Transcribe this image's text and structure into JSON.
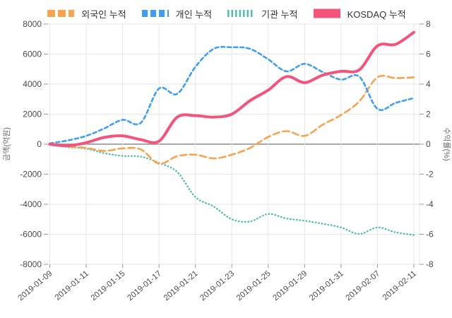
{
  "legend": [
    {
      "id": "foreign",
      "label": "외국인 누적",
      "color": "#F9A34F",
      "dash": "longdash",
      "width": 2.6
    },
    {
      "id": "individual",
      "label": "개인 누적",
      "color": "#3E9EF5",
      "dash": "dash",
      "width": 2.6
    },
    {
      "id": "institution",
      "label": "기관 누적",
      "color": "#4FBDB2",
      "dash": "dot",
      "width": 2.4
    },
    {
      "id": "kosdaq",
      "label": "KOSDAQ 누적",
      "color": "#F4547C",
      "dash": "solid",
      "width": 4
    }
  ],
  "chart_data": {
    "type": "line",
    "x": [
      "2019-01-09",
      "2019-01-10",
      "2019-01-11",
      "2019-01-14",
      "2019-01-15",
      "2019-01-16",
      "2019-01-17",
      "2019-01-18",
      "2019-01-21",
      "2019-01-22",
      "2019-01-23",
      "2019-01-24",
      "2019-01-25",
      "2019-01-28",
      "2019-01-29",
      "2019-01-30",
      "2019-01-31",
      "2019-02-01",
      "2019-02-07",
      "2019-02-08",
      "2019-02-11"
    ],
    "x_ticks": [
      {
        "index": 0,
        "label": "2019-01-09"
      },
      {
        "index": 2,
        "label": "2019-01-11"
      },
      {
        "index": 4,
        "label": "2019-01-15"
      },
      {
        "index": 6,
        "label": "2019-01-17"
      },
      {
        "index": 8,
        "label": "2019-01-21"
      },
      {
        "index": 10,
        "label": "2019-01-23"
      },
      {
        "index": 12,
        "label": "2019-01-25"
      },
      {
        "index": 14,
        "label": "2019-01-29"
      },
      {
        "index": 16,
        "label": "2019-01-31"
      },
      {
        "index": 18,
        "label": "2019-02-07"
      },
      {
        "index": 20,
        "label": "2019-02-11"
      }
    ],
    "series": [
      {
        "id": "institution",
        "name": "기관 누적",
        "axis": "left",
        "unit": "억원",
        "values": [
          -50,
          -200,
          -300,
          -600,
          -780,
          -830,
          -1250,
          -1850,
          -3520,
          -4150,
          -5000,
          -5150,
          -4650,
          -4950,
          -5100,
          -5300,
          -5550,
          -5980,
          -5550,
          -5870,
          -6050
        ]
      },
      {
        "id": "foreign",
        "name": "외국인 누적",
        "axis": "left",
        "unit": "억원",
        "values": [
          0,
          -150,
          -250,
          -450,
          -280,
          -350,
          -1300,
          -800,
          -700,
          -950,
          -700,
          -250,
          480,
          870,
          550,
          1300,
          1950,
          2850,
          4450,
          4400,
          4450
        ]
      },
      {
        "id": "individual",
        "name": "개인 누적",
        "axis": "left",
        "unit": "억원",
        "values": [
          50,
          250,
          550,
          1050,
          1620,
          1420,
          3700,
          3350,
          5150,
          6350,
          6450,
          6350,
          5650,
          4850,
          5350,
          4800,
          4300,
          4500,
          2350,
          2750,
          3070
        ]
      },
      {
        "id": "kosdaq",
        "name": "KOSDAQ 누적",
        "axis": "right",
        "unit": "%",
        "values": [
          0,
          -0.1,
          0.1,
          0.45,
          0.55,
          0.3,
          0.2,
          1.8,
          1.9,
          1.8,
          2.0,
          2.9,
          3.6,
          4.5,
          4.1,
          4.6,
          4.85,
          4.95,
          6.55,
          6.65,
          7.45
        ]
      }
    ],
    "left_axis": {
      "label": "금액(억원)",
      "min": -8000,
      "max": 8000,
      "tick_values": [
        8000,
        6000,
        4000,
        2000,
        0,
        -2000,
        -4000,
        -6000,
        -8000
      ],
      "tick_labels": [
        "8000",
        "6000",
        "4000",
        "2000",
        "0",
        "-2000",
        "-4000",
        "-6000",
        "-8000"
      ]
    },
    "right_axis": {
      "label": "수익률(%)",
      "min": -8,
      "max": 8,
      "tick_values": [
        8,
        6,
        4,
        2,
        0,
        -2,
        -4,
        -6,
        -8
      ],
      "tick_labels": [
        "8",
        "6",
        "4",
        "2",
        "0",
        "-2",
        "-4",
        "-6",
        "-8"
      ]
    },
    "grid": true,
    "legend_position": "top-center",
    "colors": {
      "foreign": "#F9A34F",
      "individual": "#3E9EF5",
      "institution": "#4FBDB2",
      "kosdaq": "#F4547C",
      "gridline": "#e6e6e6",
      "zero_line": "#9b9b9b",
      "tick_text": "#4a4a4a",
      "axis_title_text": "#666666"
    }
  }
}
